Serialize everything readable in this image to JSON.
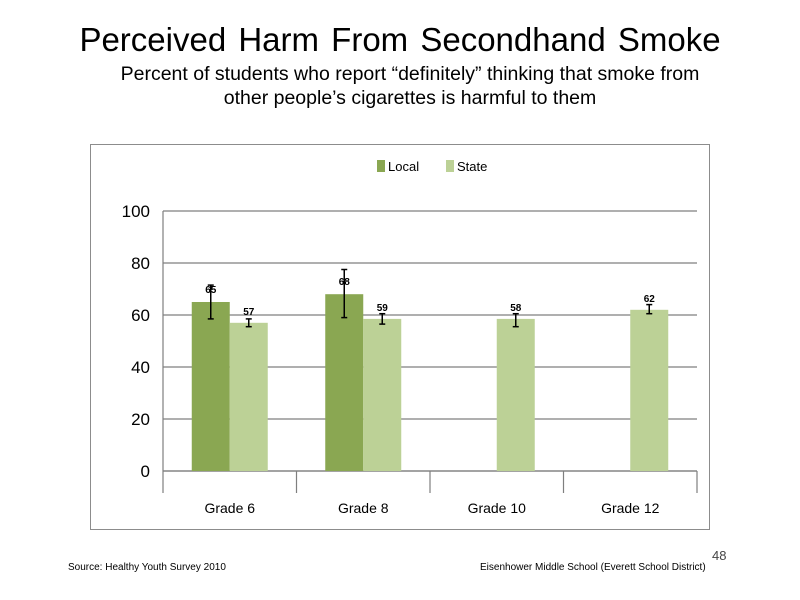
{
  "slide": {
    "title": "Perceived  Harm From Secondhand  Smoke",
    "subtitle_line1": "Percent of students who report “definitely” thinking  that smoke from",
    "subtitle_line2": "other people’s cigarettes is harmful to them",
    "source": "Source: Healthy  Youth Survey 2010",
    "school": "Eisenhower Middle  School (Everett School District)",
    "page_number": "48"
  },
  "colors": {
    "local": "#8aa752",
    "state": "#bcd196",
    "grid": "#7f7f7f"
  },
  "chart_data": {
    "type": "bar",
    "categories": [
      "Grade 6",
      "Grade 8",
      "Grade 10",
      "Grade 12"
    ],
    "series": [
      {
        "name": "Local",
        "values": [
          65,
          68,
          null,
          null
        ],
        "labels": [
          "65",
          "68",
          "",
          ""
        ],
        "error_low": [
          58.5,
          59,
          null,
          null
        ],
        "error_high": [
          71.5,
          77.5,
          null,
          null
        ]
      },
      {
        "name": "State",
        "values": [
          57,
          58.5,
          58.5,
          62
        ],
        "labels": [
          "57",
          "59",
          "58",
          "62"
        ],
        "error_low": [
          55.5,
          56.5,
          55.5,
          60.5
        ],
        "error_high": [
          58.5,
          60.5,
          60.5,
          64
        ]
      }
    ],
    "ylim": [
      0,
      100
    ],
    "yticks": [
      "0",
      "20",
      "40",
      "60",
      "80",
      "100"
    ],
    "grid": true,
    "legend_position": "top"
  }
}
